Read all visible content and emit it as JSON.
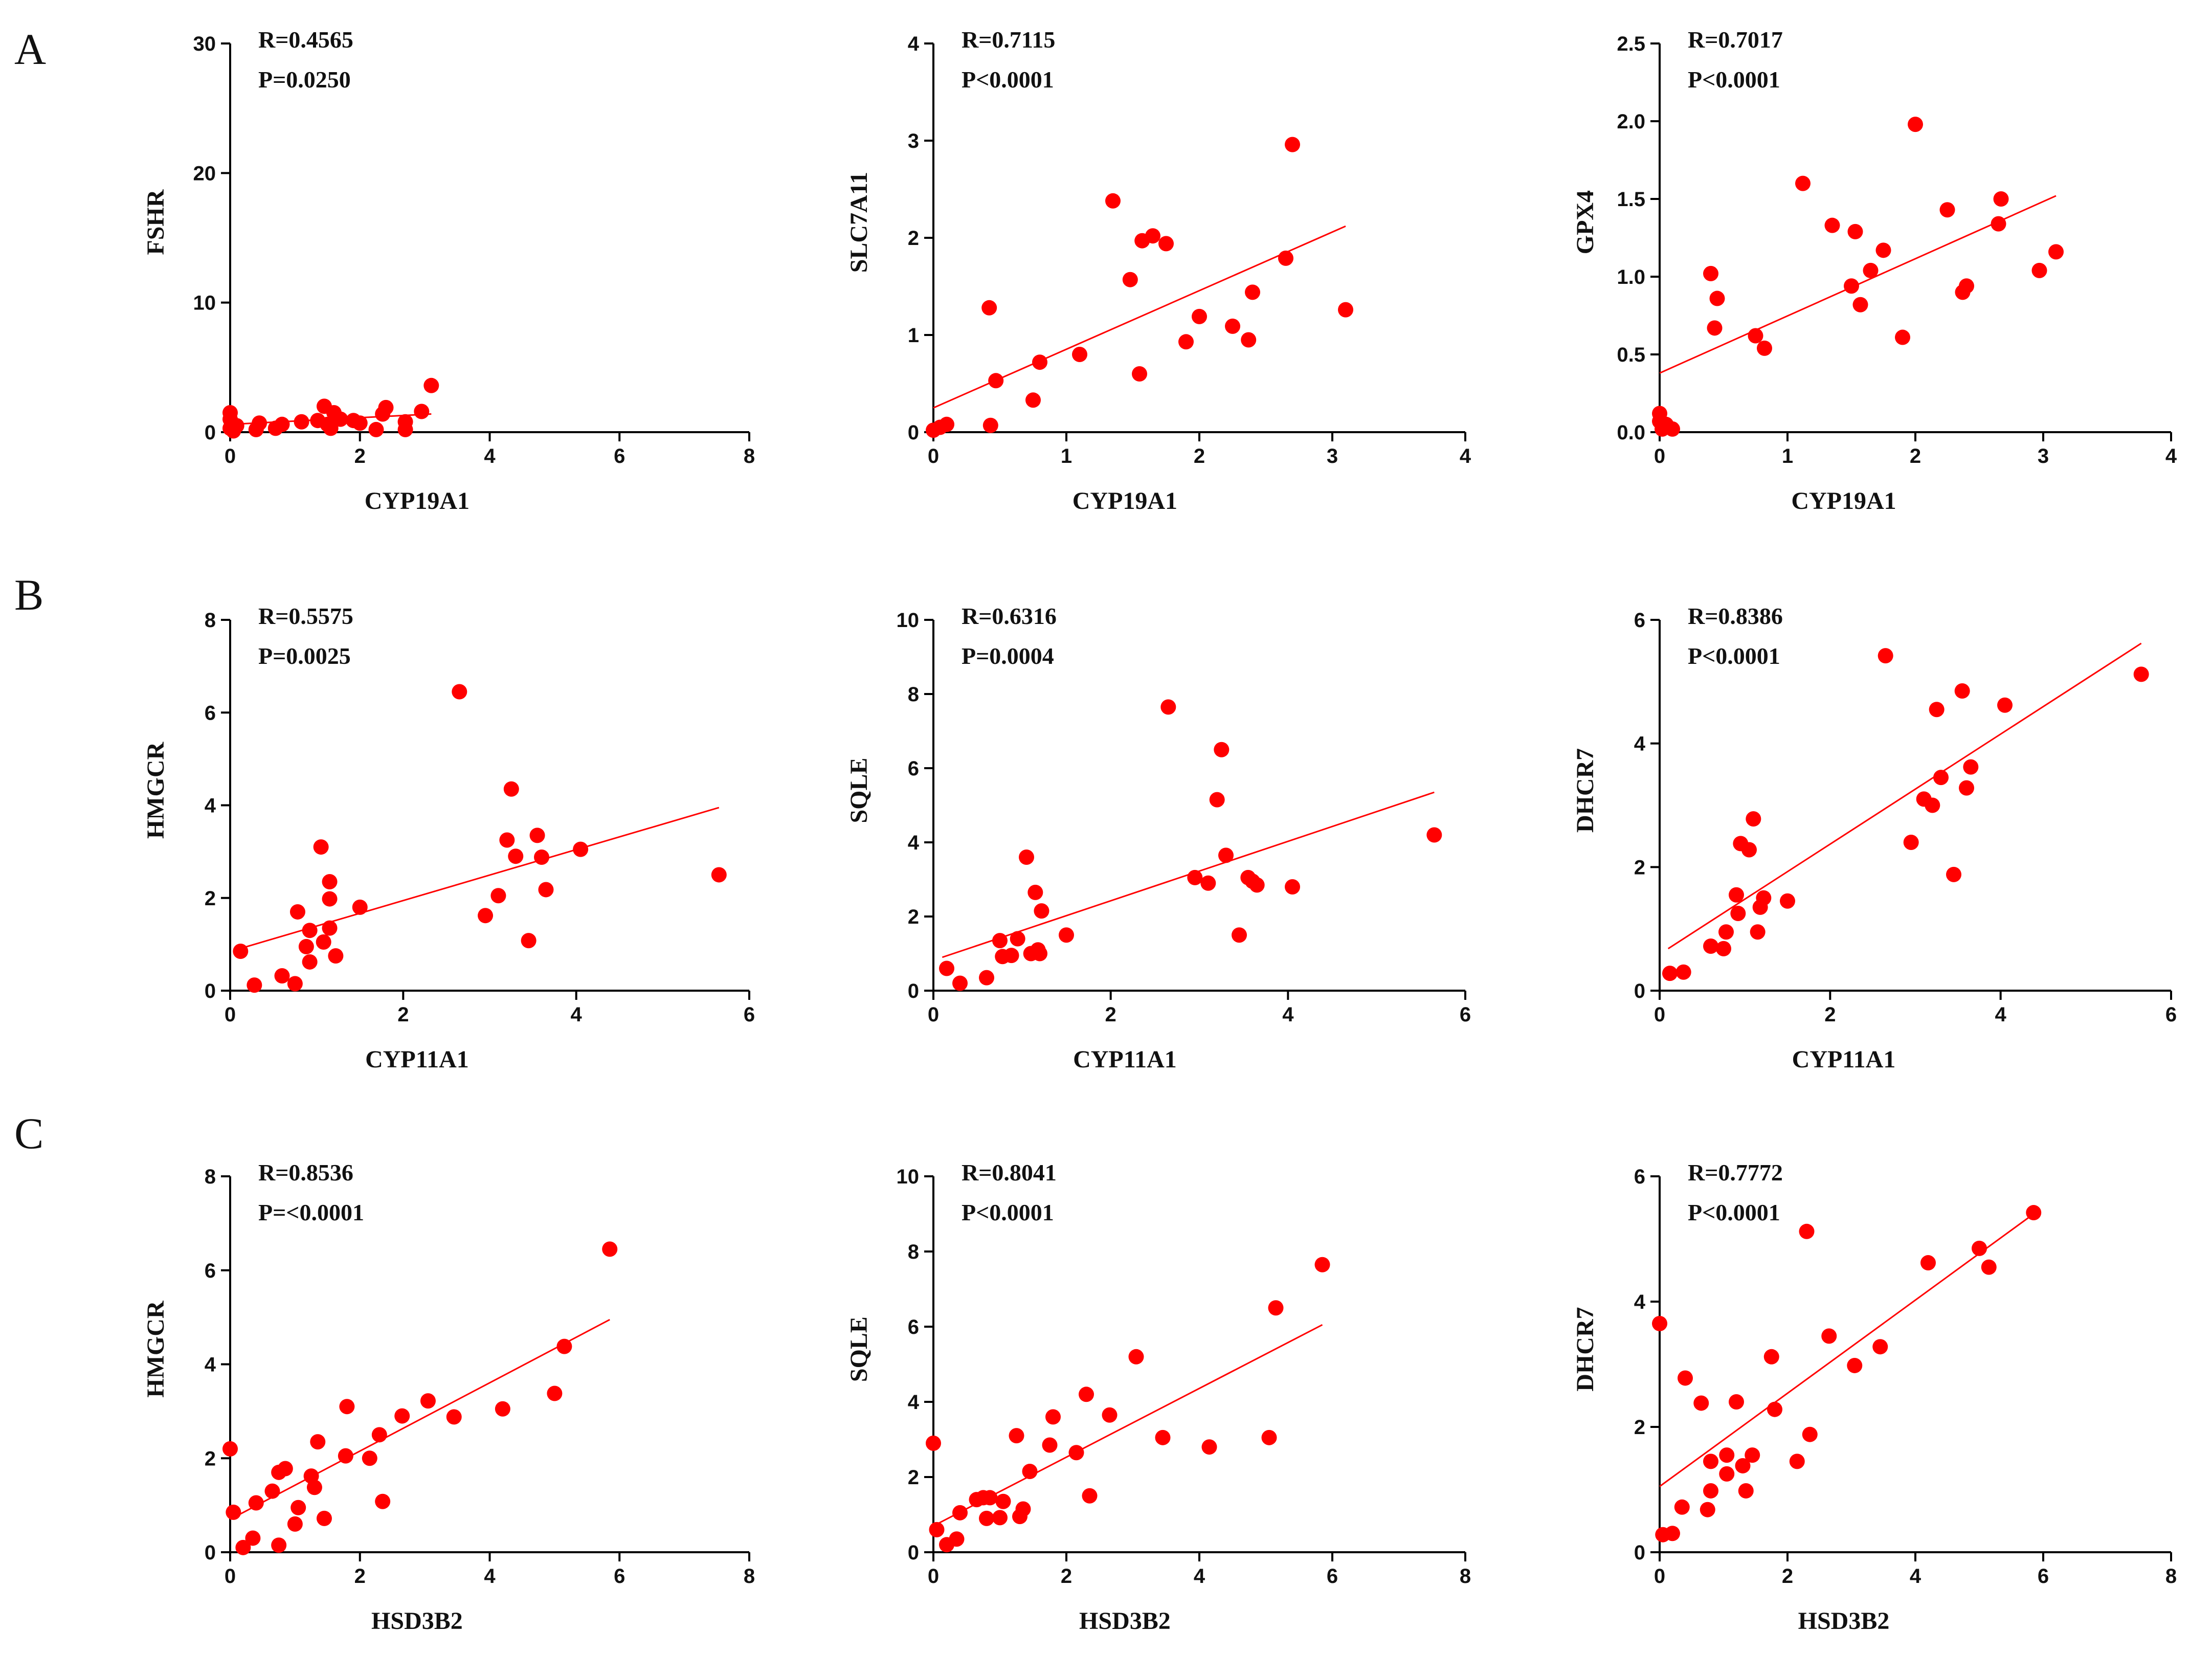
{
  "panel_labels": [
    "A",
    "B",
    "C"
  ],
  "colors": {
    "points": "#ff0000",
    "fit": "#ff0000",
    "axes": "#000000"
  },
  "chart_data": [
    {
      "type": "scatter",
      "row": 0,
      "col": 0,
      "xlabel": "CYP19A1",
      "ylabel": "FSHR",
      "xlim": [
        0,
        8
      ],
      "ylim": [
        0,
        30
      ],
      "xticks": [
        0,
        2,
        4,
        6,
        8
      ],
      "yticks": [
        0,
        10,
        20,
        30
      ],
      "stats": [
        "R=0.4565",
        "P=0.0250"
      ],
      "fit": [
        [
          0,
          0.6
        ],
        [
          3.1,
          1.4
        ]
      ],
      "points": [
        [
          0,
          1.5
        ],
        [
          0,
          1.0
        ],
        [
          0,
          0.3
        ],
        [
          0.05,
          0.1
        ],
        [
          0.1,
          0.5
        ],
        [
          0.4,
          0.2
        ],
        [
          0.45,
          0.7
        ],
        [
          0.7,
          0.3
        ],
        [
          0.8,
          0.6
        ],
        [
          1.1,
          0.8
        ],
        [
          1.35,
          0.9
        ],
        [
          1.45,
          2.0
        ],
        [
          1.5,
          0.6
        ],
        [
          1.55,
          0.3
        ],
        [
          1.6,
          1.5
        ],
        [
          1.7,
          1.0
        ],
        [
          1.9,
          0.9
        ],
        [
          2.0,
          0.7
        ],
        [
          2.25,
          0.2
        ],
        [
          2.35,
          1.4
        ],
        [
          2.4,
          1.9
        ],
        [
          2.7,
          0.8
        ],
        [
          2.7,
          0.2
        ],
        [
          2.95,
          1.6
        ],
        [
          3.1,
          3.6
        ]
      ]
    },
    {
      "type": "scatter",
      "row": 0,
      "col": 1,
      "xlabel": "CYP19A1",
      "ylabel": "SLC7A11",
      "xlim": [
        0,
        4
      ],
      "ylim": [
        0,
        4
      ],
      "xticks": [
        0,
        1,
        2,
        3,
        4
      ],
      "yticks": [
        0,
        1,
        2,
        3,
        4
      ],
      "stats": [
        "R=0.7115",
        "P<0.0001"
      ],
      "fit": [
        [
          0,
          0.25
        ],
        [
          3.1,
          2.12
        ]
      ],
      "points": [
        [
          0,
          0.02
        ],
        [
          0.05,
          0.05
        ],
        [
          0.1,
          0.08
        ],
        [
          0.42,
          1.28
        ],
        [
          0.43,
          0.07
        ],
        [
          0.47,
          0.53
        ],
        [
          0.75,
          0.33
        ],
        [
          0.8,
          0.72
        ],
        [
          1.1,
          0.8
        ],
        [
          1.35,
          2.38
        ],
        [
          1.48,
          1.57
        ],
        [
          1.55,
          0.6
        ],
        [
          1.57,
          1.97
        ],
        [
          1.65,
          2.02
        ],
        [
          1.75,
          1.94
        ],
        [
          1.9,
          0.93
        ],
        [
          2.0,
          1.19
        ],
        [
          2.25,
          1.09
        ],
        [
          2.37,
          0.95
        ],
        [
          2.4,
          1.44
        ],
        [
          2.65,
          1.79
        ],
        [
          2.7,
          2.96
        ],
        [
          3.1,
          1.26
        ]
      ]
    },
    {
      "type": "scatter",
      "row": 0,
      "col": 2,
      "xlabel": "CYP19A1",
      "ylabel": "GPX4",
      "xlim": [
        0,
        4
      ],
      "ylim": [
        0,
        2.5
      ],
      "xticks": [
        0,
        1,
        2,
        3,
        4
      ],
      "yticks": [
        0.0,
        0.5,
        1.0,
        1.5,
        2.0,
        2.5
      ],
      "stats": [
        "R=0.7017",
        "P<0.0001"
      ],
      "fit": [
        [
          0,
          0.38
        ],
        [
          3.1,
          1.52
        ]
      ],
      "points": [
        [
          0,
          0.12
        ],
        [
          0,
          0.07
        ],
        [
          0.02,
          0.02
        ],
        [
          0.05,
          0.05
        ],
        [
          0.1,
          0.02
        ],
        [
          0.4,
          1.02
        ],
        [
          0.43,
          0.67
        ],
        [
          0.45,
          0.86
        ],
        [
          0.75,
          0.62
        ],
        [
          0.82,
          0.54
        ],
        [
          1.12,
          1.6
        ],
        [
          1.35,
          1.33
        ],
        [
          1.5,
          0.94
        ],
        [
          1.53,
          1.29
        ],
        [
          1.57,
          0.82
        ],
        [
          1.65,
          1.04
        ],
        [
          1.75,
          1.17
        ],
        [
          1.9,
          0.61
        ],
        [
          2.0,
          1.98
        ],
        [
          2.25,
          1.43
        ],
        [
          2.37,
          0.9
        ],
        [
          2.4,
          0.94
        ],
        [
          2.65,
          1.34
        ],
        [
          2.67,
          1.5
        ],
        [
          2.97,
          1.04
        ],
        [
          3.1,
          1.16
        ]
      ]
    },
    {
      "type": "scatter",
      "row": 1,
      "col": 0,
      "xlabel": "CYP11A1",
      "ylabel": "HMGCR",
      "xlim": [
        0,
        6
      ],
      "ylim": [
        0,
        8
      ],
      "xticks": [
        0,
        2,
        4,
        6
      ],
      "yticks": [
        0,
        2,
        4,
        6,
        8
      ],
      "stats": [
        "R=0.5575",
        "P=0.0025"
      ],
      "fit": [
        [
          0.1,
          0.9
        ],
        [
          5.65,
          3.95
        ]
      ],
      "points": [
        [
          0.12,
          0.85
        ],
        [
          0.28,
          0.12
        ],
        [
          0.6,
          0.32
        ],
        [
          0.75,
          0.15
        ],
        [
          0.78,
          1.7
        ],
        [
          0.88,
          0.95
        ],
        [
          0.92,
          1.3
        ],
        [
          0.92,
          0.62
        ],
        [
          1.05,
          3.1
        ],
        [
          1.08,
          1.05
        ],
        [
          1.15,
          2.35
        ],
        [
          1.15,
          1.35
        ],
        [
          1.15,
          1.98
        ],
        [
          1.22,
          0.75
        ],
        [
          1.5,
          1.8
        ],
        [
          2.65,
          6.45
        ],
        [
          2.95,
          1.62
        ],
        [
          3.1,
          2.05
        ],
        [
          3.2,
          3.25
        ],
        [
          3.25,
          4.35
        ],
        [
          3.3,
          2.9
        ],
        [
          3.45,
          1.08
        ],
        [
          3.55,
          3.35
        ],
        [
          3.6,
          2.88
        ],
        [
          3.65,
          2.18
        ],
        [
          4.05,
          3.05
        ],
        [
          5.65,
          2.5
        ]
      ]
    },
    {
      "type": "scatter",
      "row": 1,
      "col": 1,
      "xlabel": "CYP11A1",
      "ylabel": "SQLE",
      "xlim": [
        0,
        6
      ],
      "ylim": [
        0,
        10
      ],
      "xticks": [
        0,
        2,
        4,
        6
      ],
      "yticks": [
        0,
        2,
        4,
        6,
        8,
        10
      ],
      "stats": [
        "R=0.6316",
        "P=0.0004"
      ],
      "fit": [
        [
          0.1,
          0.9
        ],
        [
          5.65,
          5.35
        ]
      ],
      "points": [
        [
          0.15,
          0.6
        ],
        [
          0.3,
          0.2
        ],
        [
          0.6,
          0.35
        ],
        [
          0.75,
          1.35
        ],
        [
          0.78,
          0.92
        ],
        [
          0.88,
          0.95
        ],
        [
          0.95,
          1.4
        ],
        [
          1.05,
          3.6
        ],
        [
          1.1,
          1.0
        ],
        [
          1.15,
          2.65
        ],
        [
          1.18,
          1.1
        ],
        [
          1.2,
          1.0
        ],
        [
          1.22,
          2.15
        ],
        [
          1.5,
          1.5
        ],
        [
          2.65,
          7.65
        ],
        [
          2.95,
          3.05
        ],
        [
          3.1,
          2.9
        ],
        [
          3.2,
          5.15
        ],
        [
          3.25,
          6.5
        ],
        [
          3.3,
          3.65
        ],
        [
          3.45,
          1.5
        ],
        [
          3.55,
          3.05
        ],
        [
          3.6,
          2.95
        ],
        [
          3.65,
          2.85
        ],
        [
          4.05,
          2.8
        ],
        [
          5.65,
          4.2
        ]
      ]
    },
    {
      "type": "scatter",
      "row": 1,
      "col": 2,
      "xlabel": "CYP11A1",
      "ylabel": "DHCR7",
      "xlim": [
        0,
        6
      ],
      "ylim": [
        0,
        6
      ],
      "xticks": [
        0,
        2,
        4,
        6
      ],
      "yticks": [
        0,
        2,
        4,
        6
      ],
      "stats": [
        "R=0.8386",
        "P<0.0001"
      ],
      "fit": [
        [
          0.1,
          0.68
        ],
        [
          5.65,
          5.62
        ]
      ],
      "points": [
        [
          0.12,
          0.28
        ],
        [
          0.28,
          0.3
        ],
        [
          0.6,
          0.72
        ],
        [
          0.75,
          0.68
        ],
        [
          0.78,
          0.95
        ],
        [
          0.9,
          1.55
        ],
        [
          0.92,
          1.25
        ],
        [
          0.95,
          2.38
        ],
        [
          1.05,
          2.28
        ],
        [
          1.1,
          2.78
        ],
        [
          1.15,
          0.95
        ],
        [
          1.18,
          1.35
        ],
        [
          1.22,
          1.5
        ],
        [
          1.5,
          1.45
        ],
        [
          2.65,
          5.42
        ],
        [
          2.95,
          2.4
        ],
        [
          3.1,
          3.1
        ],
        [
          3.2,
          3.0
        ],
        [
          3.25,
          4.55
        ],
        [
          3.3,
          3.45
        ],
        [
          3.45,
          1.88
        ],
        [
          3.55,
          4.85
        ],
        [
          3.6,
          3.28
        ],
        [
          3.65,
          3.62
        ],
        [
          4.05,
          4.62
        ],
        [
          5.65,
          5.12
        ]
      ]
    },
    {
      "type": "scatter",
      "row": 2,
      "col": 0,
      "xlabel": "HSD3B2",
      "ylabel": "HMGCR",
      "xlim": [
        0,
        8
      ],
      "ylim": [
        0,
        8
      ],
      "xticks": [
        0,
        2,
        4,
        6,
        8
      ],
      "yticks": [
        0,
        2,
        4,
        6,
        8
      ],
      "stats": [
        "R=0.8536",
        "P=<0.0001"
      ],
      "fit": [
        [
          0,
          0.7
        ],
        [
          5.85,
          4.95
        ]
      ],
      "points": [
        [
          0,
          2.2
        ],
        [
          0.05,
          0.85
        ],
        [
          0.2,
          0.1
        ],
        [
          0.35,
          0.3
        ],
        [
          0.4,
          1.05
        ],
        [
          0.65,
          1.3
        ],
        [
          0.75,
          1.7
        ],
        [
          0.75,
          0.15
        ],
        [
          0.85,
          1.78
        ],
        [
          1.0,
          0.6
        ],
        [
          1.05,
          0.95
        ],
        [
          1.25,
          1.62
        ],
        [
          1.3,
          1.38
        ],
        [
          1.35,
          2.35
        ],
        [
          1.45,
          0.72
        ],
        [
          1.78,
          2.05
        ],
        [
          1.8,
          3.1
        ],
        [
          2.15,
          2.0
        ],
        [
          2.3,
          2.5
        ],
        [
          2.35,
          1.08
        ],
        [
          2.65,
          2.9
        ],
        [
          3.05,
          3.22
        ],
        [
          3.45,
          2.88
        ],
        [
          4.2,
          3.05
        ],
        [
          5.0,
          3.38
        ],
        [
          5.15,
          4.38
        ],
        [
          5.85,
          6.45
        ]
      ]
    },
    {
      "type": "scatter",
      "row": 2,
      "col": 1,
      "xlabel": "HSD3B2",
      "ylabel": "SQLE",
      "xlim": [
        0,
        8
      ],
      "ylim": [
        0,
        10
      ],
      "xticks": [
        0,
        2,
        4,
        6,
        8
      ],
      "yticks": [
        0,
        2,
        4,
        6,
        8,
        10
      ],
      "stats": [
        "R=0.8041",
        "P<0.0001"
      ],
      "fit": [
        [
          0,
          0.7
        ],
        [
          5.85,
          6.05
        ]
      ],
      "points": [
        [
          0,
          2.9
        ],
        [
          0.05,
          0.6
        ],
        [
          0.2,
          0.2
        ],
        [
          0.35,
          0.35
        ],
        [
          0.4,
          1.05
        ],
        [
          0.65,
          1.4
        ],
        [
          0.75,
          1.45
        ],
        [
          0.8,
          0.9
        ],
        [
          0.85,
          1.45
        ],
        [
          1.0,
          0.92
        ],
        [
          1.05,
          1.35
        ],
        [
          1.25,
          3.1
        ],
        [
          1.3,
          0.95
        ],
        [
          1.35,
          1.15
        ],
        [
          1.45,
          2.15
        ],
        [
          1.75,
          2.85
        ],
        [
          1.8,
          3.6
        ],
        [
          2.15,
          2.65
        ],
        [
          2.3,
          4.2
        ],
        [
          2.35,
          1.5
        ],
        [
          2.65,
          3.65
        ],
        [
          3.05,
          5.2
        ],
        [
          3.45,
          3.05
        ],
        [
          4.15,
          2.8
        ],
        [
          5.05,
          3.05
        ],
        [
          5.15,
          6.5
        ],
        [
          5.85,
          7.65
        ]
      ]
    },
    {
      "type": "scatter",
      "row": 2,
      "col": 2,
      "xlabel": "HSD3B2",
      "ylabel": "DHCR7",
      "xlim": [
        0,
        8
      ],
      "ylim": [
        0,
        6
      ],
      "xticks": [
        0,
        2,
        4,
        6,
        8
      ],
      "yticks": [
        0,
        2,
        4,
        6
      ],
      "stats": [
        "R=0.7772",
        "P<0.0001"
      ],
      "fit": [
        [
          0,
          1.05
        ],
        [
          5.85,
          5.4
        ]
      ],
      "points": [
        [
          0,
          3.65
        ],
        [
          0.05,
          0.28
        ],
        [
          0.2,
          0.3
        ],
        [
          0.35,
          0.72
        ],
        [
          0.4,
          2.78
        ],
        [
          0.65,
          2.38
        ],
        [
          0.75,
          0.68
        ],
        [
          0.8,
          0.98
        ],
        [
          0.8,
          1.45
        ],
        [
          1.05,
          1.25
        ],
        [
          1.05,
          1.55
        ],
        [
          1.2,
          2.4
        ],
        [
          1.3,
          1.38
        ],
        [
          1.35,
          0.98
        ],
        [
          1.45,
          1.55
        ],
        [
          1.75,
          3.12
        ],
        [
          1.8,
          2.28
        ],
        [
          2.15,
          1.45
        ],
        [
          2.3,
          5.12
        ],
        [
          2.35,
          1.88
        ],
        [
          2.65,
          3.45
        ],
        [
          3.05,
          2.98
        ],
        [
          3.45,
          3.28
        ],
        [
          4.2,
          4.62
        ],
        [
          5.0,
          4.85
        ],
        [
          5.15,
          4.55
        ],
        [
          5.85,
          5.42
        ]
      ]
    }
  ]
}
